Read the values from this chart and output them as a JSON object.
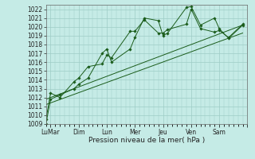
{
  "title": "",
  "xlabel": "Pression niveau de la mer( hPa )",
  "background_color": "#c5ebe6",
  "grid_color": "#9eccc5",
  "line_color": "#1a5c1a",
  "ylim": [
    1009,
    1022.5
  ],
  "xlim": [
    0,
    42
  ],
  "yticks": [
    1009,
    1010,
    1011,
    1012,
    1013,
    1014,
    1015,
    1016,
    1017,
    1018,
    1019,
    1020,
    1021,
    1022
  ],
  "xtick_positions": [
    1,
    7,
    13,
    19,
    25,
    31,
    37,
    43
  ],
  "xtick_labels": [
    "LuMar",
    "Dim",
    "Lun",
    "Mer",
    "Jeu",
    "Ven",
    "Sam",
    ""
  ],
  "series": [
    {
      "x": [
        0,
        1,
        3,
        6,
        7,
        9,
        12,
        13,
        14,
        18,
        19,
        21,
        24,
        25,
        26,
        30,
        31,
        33,
        36,
        37,
        39,
        42
      ],
      "y": [
        1009.0,
        1011.8,
        1012.3,
        1013.0,
        1013.5,
        1014.2,
        1017.0,
        1017.5,
        1016.0,
        1017.5,
        1018.8,
        1021.0,
        1020.7,
        1019.0,
        1019.3,
        1022.2,
        1022.3,
        1020.2,
        1021.0,
        1019.8,
        1018.7,
        1020.2
      ]
    },
    {
      "x": [
        0,
        1,
        3,
        6,
        7,
        9,
        12,
        13,
        14,
        18,
        19,
        21,
        24,
        25,
        26,
        30,
        31,
        33,
        36,
        37,
        39,
        42
      ],
      "y": [
        1009.5,
        1012.5,
        1012.0,
        1013.8,
        1014.2,
        1015.5,
        1015.8,
        1016.8,
        1016.5,
        1019.5,
        1019.5,
        1020.8,
        1019.3,
        1019.3,
        1019.7,
        1020.3,
        1022.0,
        1019.8,
        1019.4,
        1019.6,
        1018.8,
        1020.3
      ]
    },
    {
      "x": [
        0,
        42
      ],
      "y": [
        1011.2,
        1019.3
      ]
    },
    {
      "x": [
        0,
        42
      ],
      "y": [
        1011.8,
        1020.2
      ]
    }
  ]
}
